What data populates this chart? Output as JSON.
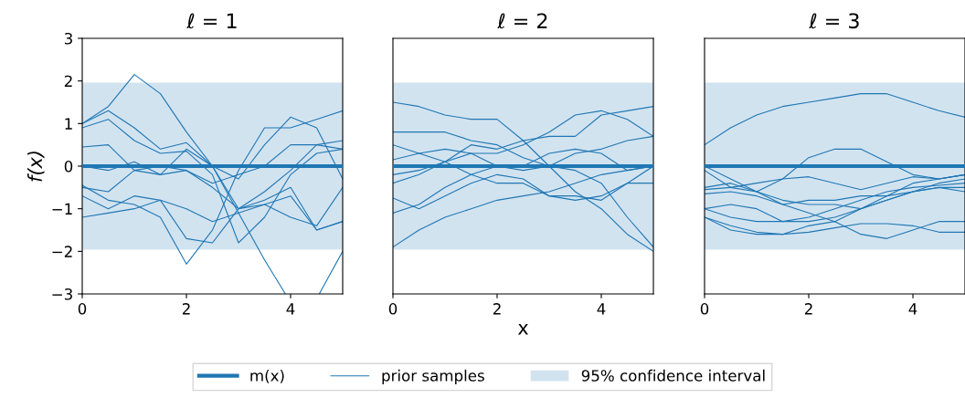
{
  "chart_data": [
    {
      "type": "line",
      "title": "ℓ = 1",
      "ylabel": "f(x)",
      "xlim": [
        0,
        5
      ],
      "ylim": [
        -3,
        3
      ],
      "xticks": [
        0,
        2,
        4
      ],
      "yticks": [
        {
          "value": -3,
          "label": "−3"
        },
        {
          "value": -2,
          "label": "−2"
        },
        {
          "value": -1,
          "label": "−1"
        },
        0,
        1,
        2,
        3
      ],
      "grid": false,
      "marker": "none",
      "legend": "bottom",
      "x": [
        0,
        0.5,
        1,
        1.5,
        2,
        2.5,
        3,
        3.5,
        4,
        4.5,
        5
      ],
      "bands": [
        {
          "axis": "y",
          "from": -1.96,
          "to": 1.96,
          "label": "95% confidence interval",
          "color": "#d2e3f0"
        }
      ],
      "series": [
        {
          "name": "m(x)",
          "color": "#1f77b4",
          "values": [
            0,
            0,
            0,
            0,
            0,
            0,
            0,
            0,
            0,
            0,
            0
          ]
        },
        {
          "name": "prior samples",
          "color": "#1f77b4",
          "x": [
            0,
            0.5,
            1,
            1.5,
            2,
            2.5,
            3,
            3.5,
            3.9,
            4.2,
            4.55,
            5
          ],
          "values": [
            1.0,
            1.4,
            2.15,
            1.7,
            0.8,
            0.0,
            -1.1,
            -2.2,
            -3.0,
            null,
            -3.0,
            -2.0
          ]
        },
        {
          "color": "#1f77b4",
          "values": [
            -0.45,
            -0.8,
            -0.9,
            -1.2,
            -2.3,
            -1.5,
            -0.1,
            0.9,
            0.9,
            1.1,
            1.3
          ]
        },
        {
          "color": "#1f77b4",
          "values": [
            1.0,
            1.3,
            0.9,
            0.4,
            0.55,
            0.0,
            -1.0,
            -0.8,
            -0.5,
            -1.5,
            -1.3
          ]
        },
        {
          "color": "#1f77b4",
          "values": [
            0.9,
            1.1,
            0.6,
            0.3,
            0.35,
            -0.2,
            -1.8,
            -1.2,
            -0.2,
            0.3,
            0.4
          ]
        },
        {
          "color": "#1f77b4",
          "values": [
            0.45,
            0.5,
            -0.1,
            -0.2,
            0.4,
            0.0,
            -0.3,
            0.5,
            1.15,
            0.9,
            -0.3
          ]
        },
        {
          "color": "#1f77b4",
          "values": [
            0.0,
            -0.1,
            0.1,
            -0.2,
            -0.1,
            -0.4,
            -0.2,
            0.0,
            0.5,
            0.5,
            0.4
          ]
        },
        {
          "color": "#1f77b4",
          "values": [
            -0.5,
            -0.6,
            -0.1,
            0.0,
            -0.1,
            -0.5,
            -1.0,
            -0.9,
            -0.7,
            -1.5,
            -1.3
          ]
        },
        {
          "color": "#1f77b4",
          "values": [
            -0.7,
            -1.0,
            -0.7,
            -0.8,
            -1.7,
            -1.8,
            -1.0,
            -0.6,
            -0.1,
            0.5,
            0.6
          ]
        },
        {
          "color": "#1f77b4",
          "values": [
            -1.2,
            -1.1,
            -1.0,
            -0.8,
            -1.0,
            -1.3,
            -1.1,
            -0.9,
            -1.2,
            -1.4,
            -0.5
          ]
        }
      ]
    },
    {
      "type": "line",
      "title": "ℓ = 2",
      "xlabel": "x",
      "xlim": [
        0,
        5
      ],
      "ylim": [
        -3,
        3
      ],
      "xticks": [
        0,
        2,
        4
      ],
      "tick_labels": "x",
      "grid": false,
      "marker": "none",
      "x": [
        0,
        0.5,
        1,
        1.5,
        2,
        2.5,
        3,
        3.5,
        4,
        4.5,
        5
      ],
      "bands": [
        {
          "axis": "y",
          "from": -1.96,
          "to": 1.96,
          "color": "#d2e3f0"
        }
      ],
      "series": [
        {
          "color": "#1f77b4",
          "values": [
            0,
            0,
            0,
            0,
            0,
            0,
            0,
            0,
            0,
            0,
            0
          ]
        },
        {
          "color": "#1f77b4",
          "values": [
            1.5,
            1.4,
            1.2,
            1.1,
            1.1,
            0.6,
            0.0,
            -0.6,
            -1.0,
            -1.6,
            -2.0
          ]
        },
        {
          "color": "#1f77b4",
          "values": [
            0.8,
            0.8,
            0.8,
            0.6,
            0.5,
            0.2,
            0.0,
            -0.1,
            -0.4,
            -1.2,
            -1.9
          ]
        },
        {
          "color": "#1f77b4",
          "values": [
            0.5,
            0.3,
            0.1,
            -0.2,
            -0.4,
            -0.4,
            -0.7,
            -0.7,
            -0.8,
            -0.4,
            -0.4
          ]
        },
        {
          "color": "#1f77b4",
          "values": [
            0.15,
            0.3,
            0.4,
            0.3,
            0.0,
            -0.1,
            0.0,
            0.3,
            0.4,
            0.6,
            0.7
          ]
        },
        {
          "color": "#1f77b4",
          "values": [
            -0.2,
            -0.1,
            0.1,
            0.5,
            0.4,
            0.6,
            0.7,
            0.7,
            1.2,
            1.3,
            1.4
          ]
        },
        {
          "color": "#1f77b4",
          "values": [
            -0.4,
            -0.2,
            0.1,
            0.3,
            0.3,
            0.5,
            0.8,
            1.2,
            1.3,
            1.1,
            0.7
          ]
        },
        {
          "color": "#1f77b4",
          "values": [
            -0.75,
            -1.0,
            -0.7,
            -0.4,
            -0.2,
            -0.3,
            -0.7,
            -0.8,
            -0.7,
            -0.4,
            0.0
          ]
        },
        {
          "color": "#1f77b4",
          "values": [
            -1.1,
            -0.9,
            -0.5,
            -0.2,
            0.0,
            0.0,
            0.3,
            0.4,
            0.3,
            -0.1,
            0.0
          ]
        },
        {
          "color": "#1f77b4",
          "values": [
            -1.9,
            -1.5,
            -1.2,
            -1.0,
            -0.8,
            -0.7,
            -0.6,
            -0.4,
            -0.2,
            -0.1,
            0.0
          ]
        }
      ]
    },
    {
      "type": "line",
      "title": "ℓ = 3",
      "xlim": [
        0,
        5
      ],
      "ylim": [
        -3,
        3
      ],
      "xticks": [
        0,
        2,
        4
      ],
      "tick_labels": "x",
      "grid": false,
      "marker": "none",
      "x": [
        0,
        0.5,
        1,
        1.5,
        2,
        2.5,
        3,
        3.5,
        4,
        4.5,
        5
      ],
      "bands": [
        {
          "axis": "y",
          "from": -1.96,
          "to": 1.96,
          "color": "#d2e3f0"
        }
      ],
      "series": [
        {
          "color": "#1f77b4",
          "values": [
            0,
            0,
            0,
            0,
            0,
            0,
            0,
            0,
            0,
            0,
            0
          ]
        },
        {
          "color": "#1f77b4",
          "values": [
            0.5,
            0.9,
            1.2,
            1.4,
            1.5,
            1.6,
            1.7,
            1.7,
            1.5,
            1.3,
            1.15
          ]
        },
        {
          "color": "#1f77b4",
          "values": [
            -0.1,
            -0.5,
            -0.6,
            -0.3,
            0.2,
            0.4,
            0.4,
            0.1,
            -0.2,
            -0.3,
            -0.2
          ]
        },
        {
          "color": "#1f77b4",
          "values": [
            0.0,
            -0.3,
            -0.6,
            -0.8,
            -0.9,
            -0.9,
            -1.0,
            -0.8,
            -0.6,
            -0.5,
            -0.6
          ]
        },
        {
          "color": "#1f77b4",
          "values": [
            -0.5,
            -0.4,
            -0.6,
            -0.9,
            -1.1,
            -1.3,
            -1.0,
            -0.7,
            -0.4,
            -0.3,
            -0.2
          ]
        },
        {
          "color": "#1f77b4",
          "values": [
            -0.55,
            -0.5,
            -0.4,
            -0.3,
            -0.25,
            -0.4,
            -0.55,
            -0.4,
            -0.25,
            -0.3,
            -0.2
          ]
        },
        {
          "color": "#1f77b4",
          "values": [
            -0.65,
            -0.6,
            -0.7,
            -0.9,
            -0.8,
            -0.8,
            -0.7,
            -0.7,
            -0.6,
            -0.5,
            -0.5
          ]
        },
        {
          "color": "#1f77b4",
          "values": [
            -1.0,
            -0.9,
            -1.0,
            -1.3,
            -1.3,
            -1.2,
            -1.0,
            -0.8,
            -0.6,
            -0.4,
            -0.3
          ]
        },
        {
          "color": "#1f77b4",
          "values": [
            -1.0,
            -1.2,
            -1.3,
            -1.3,
            -1.2,
            -1.0,
            -0.8,
            -0.6,
            -0.5,
            -0.45,
            -0.4
          ]
        },
        {
          "color": "#1f77b4",
          "values": [
            -1.2,
            -1.4,
            -1.55,
            -1.6,
            -1.55,
            -1.45,
            -1.35,
            -1.35,
            -1.4,
            -1.55,
            -1.55
          ]
        },
        {
          "color": "#1f77b4",
          "values": [
            -1.2,
            -1.5,
            -1.6,
            -1.6,
            -1.4,
            -1.3,
            -1.6,
            -1.7,
            -1.5,
            -1.3,
            -1.3
          ]
        }
      ]
    }
  ]
}
